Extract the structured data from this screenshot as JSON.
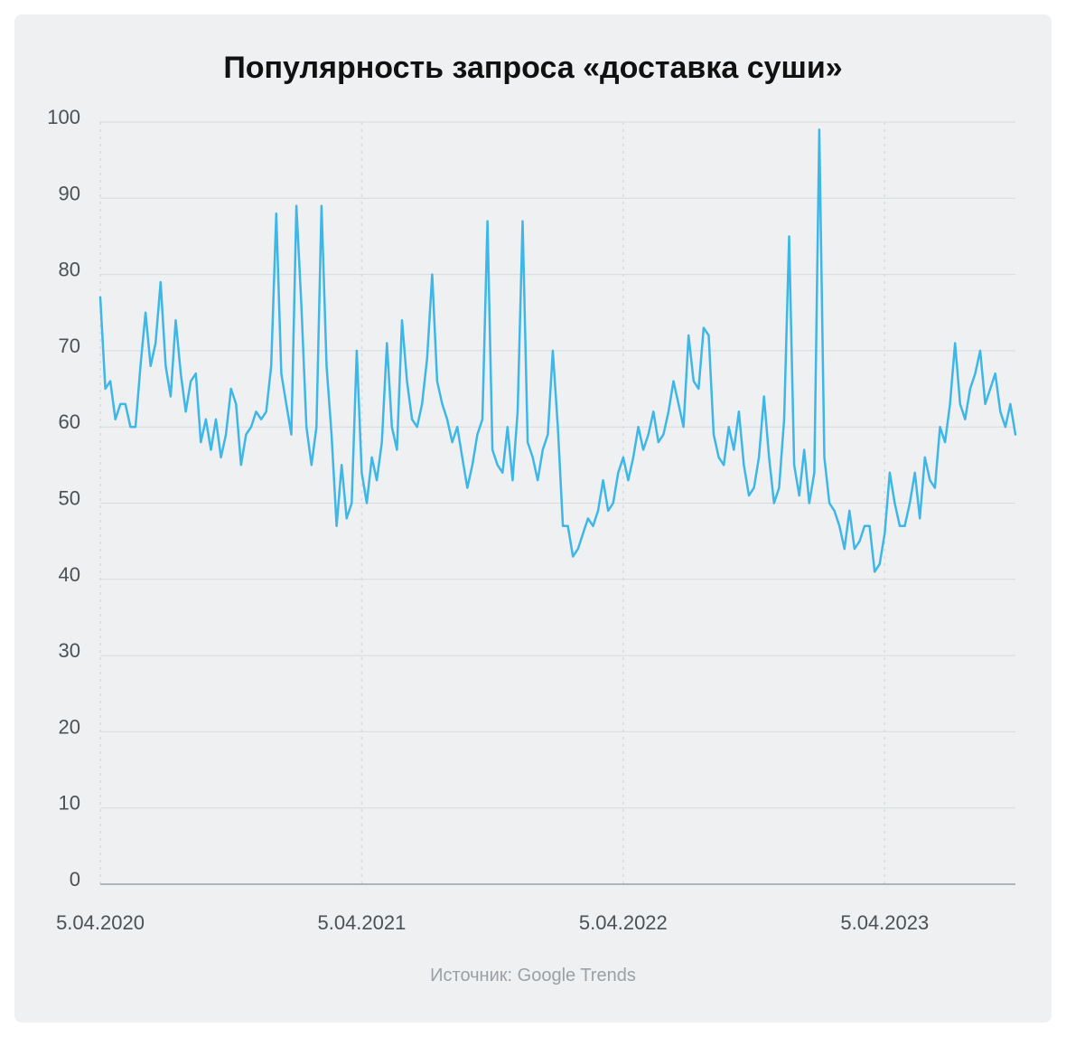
{
  "chart": {
    "type": "line",
    "title": "Популярность запроса «доставка суши»",
    "title_fontsize": 34,
    "title_color": "#111111",
    "source_prefix": "Источник: ",
    "source_name": "Google Trends",
    "source_fontsize": 20,
    "source_color": "#9aa0a6",
    "background_color": "#eef0f1",
    "line_color": "#3db6e8",
    "line_width": 2.5,
    "axis_color": "#9aa0a6",
    "grid_color": "#d7dbde",
    "vgrid_dash": "3,5",
    "tick_label_color": "#4c5156",
    "tick_fontsize": 22,
    "ylim": [
      0,
      100
    ],
    "yticks": [
      0,
      10,
      20,
      30,
      40,
      50,
      60,
      70,
      80,
      90,
      100
    ],
    "x_labels": [
      "5.04.2020",
      "5.04.2021",
      "5.04.2022",
      "5.04.2023"
    ],
    "x_label_indices": [
      0,
      52,
      104,
      156
    ],
    "n_points": 183,
    "values": [
      77,
      65,
      66,
      61,
      63,
      63,
      60,
      60,
      68,
      75,
      68,
      71,
      79,
      68,
      64,
      74,
      67,
      62,
      66,
      67,
      58,
      61,
      57,
      61,
      56,
      59,
      65,
      63,
      55,
      59,
      60,
      62,
      61,
      62,
      68,
      88,
      67,
      63,
      59,
      89,
      76,
      60,
      55,
      60,
      89,
      68,
      59,
      47,
      55,
      48,
      50,
      70,
      54,
      50,
      56,
      53,
      58,
      71,
      60,
      57,
      74,
      66,
      61,
      60,
      63,
      69,
      80,
      66,
      63,
      61,
      58,
      60,
      56,
      52,
      55,
      59,
      61,
      87,
      57,
      55,
      54,
      60,
      53,
      62,
      87,
      58,
      56,
      53,
      57,
      59,
      70,
      60,
      47,
      47,
      43,
      44,
      46,
      48,
      47,
      49,
      53,
      49,
      50,
      54,
      56,
      53,
      56,
      60,
      57,
      59,
      62,
      58,
      59,
      62,
      66,
      63,
      60,
      72,
      66,
      65,
      73,
      72,
      59,
      56,
      55,
      60,
      57,
      62,
      55,
      51,
      52,
      56,
      64,
      56,
      50,
      52,
      61,
      85,
      55,
      51,
      57,
      50,
      54,
      99,
      56,
      50,
      49,
      47,
      44,
      49,
      44,
      45,
      47,
      47,
      41,
      42,
      46,
      54,
      50,
      47,
      47,
      50,
      54,
      48,
      56,
      53,
      52,
      60,
      58,
      63,
      71,
      63,
      61,
      65,
      67,
      70,
      63,
      65,
      67,
      62,
      60,
      63,
      59
    ]
  }
}
